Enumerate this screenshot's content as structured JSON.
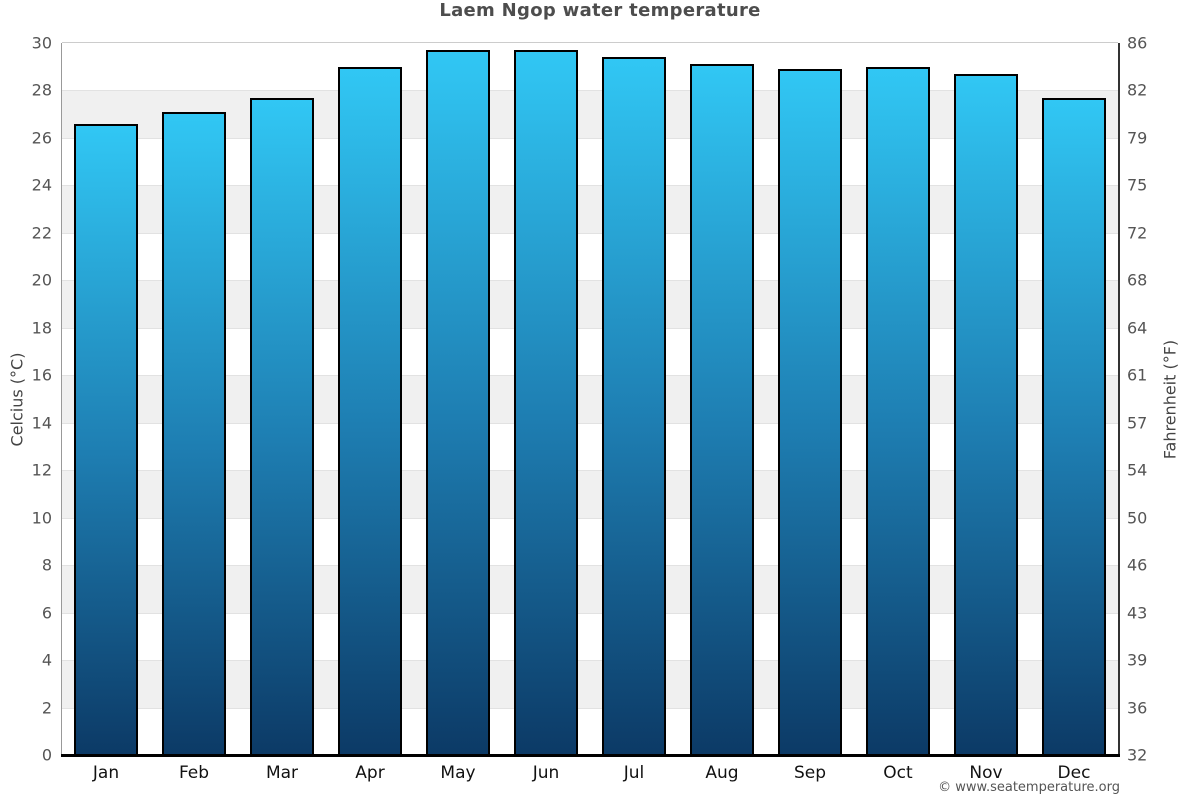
{
  "chart_data": {
    "type": "bar",
    "title": "Laem Ngop water temperature",
    "categories": [
      "Jan",
      "Feb",
      "Mar",
      "Apr",
      "May",
      "Jun",
      "Jul",
      "Aug",
      "Sep",
      "Oct",
      "Nov",
      "Dec"
    ],
    "values": [
      26.6,
      27.1,
      27.7,
      29.0,
      29.7,
      29.7,
      29.4,
      29.1,
      28.9,
      29.0,
      28.7,
      27.7
    ],
    "ylabel_left": "Celcius (°C)",
    "ylabel_right": "Fahrenheit (°F)",
    "ylim": [
      0,
      30
    ],
    "ytick_step": 2,
    "yticks_celsius": [
      0,
      2,
      4,
      6,
      8,
      10,
      12,
      14,
      16,
      18,
      20,
      22,
      24,
      26,
      28,
      30
    ],
    "yticks_fahrenheit": [
      "32",
      "36",
      "39",
      "43",
      "46",
      "50",
      "54",
      "57",
      "61",
      "64",
      "68",
      "72",
      "75",
      "79",
      "82",
      "86"
    ],
    "grid": "alternating-horizontal-bands",
    "legend_position": "none",
    "colors": {
      "bar_gradient_top": "#31c7f4",
      "bar_gradient_mid": "#1e7eb2",
      "bar_gradient_bottom": "#0c3a66",
      "bar_border": "#000000",
      "band_fill": "#f0f0f0",
      "gridline": "#e2e2e2",
      "title_text": "#4d4d4d",
      "tick_text": "#555555",
      "month_text": "#111111"
    }
  },
  "footer": {
    "copyright": "© www.seatemperature.org"
  }
}
